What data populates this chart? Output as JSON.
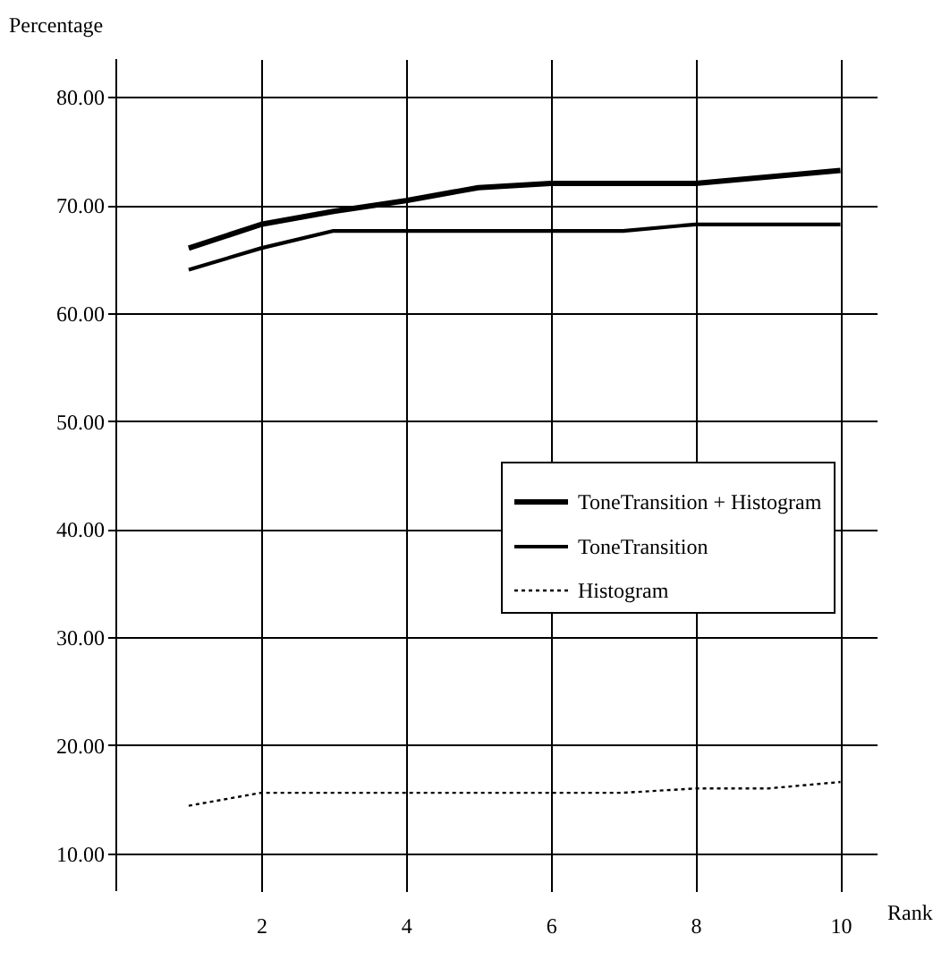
{
  "chart_data": {
    "type": "line",
    "xlabel": "Rank",
    "ylabel": "Percentage",
    "x": [
      1,
      2,
      3,
      4,
      5,
      6,
      7,
      8,
      9,
      10
    ],
    "series": [
      {
        "name": "ToneTransition + Histogram",
        "color": "#000000",
        "line_style": "solid",
        "values": [
          66.0,
          68.2,
          69.4,
          70.4,
          71.6,
          72.0,
          72.0,
          72.0,
          72.6,
          73.2
        ]
      },
      {
        "name": "ToneTransition",
        "color": "#000000",
        "line_style": "solid",
        "values": [
          64.0,
          66.0,
          67.6,
          67.6,
          67.6,
          67.6,
          67.6,
          68.2,
          68.2,
          68.2
        ]
      },
      {
        "name": "Histogram",
        "color": "#000000",
        "line_style": "dotted",
        "values": [
          14.4,
          15.6,
          15.6,
          15.6,
          15.6,
          15.6,
          15.6,
          16.0,
          16.0,
          16.6
        ]
      }
    ],
    "xlim": [
      0,
      10.5
    ],
    "xticks": [
      2,
      4,
      6,
      8,
      10
    ],
    "ylim": [
      6.5,
      83.5
    ],
    "yticks": [
      {
        "value": 10,
        "label": "10.00"
      },
      {
        "value": 20,
        "label": "20.00"
      },
      {
        "value": 30,
        "label": "30.00"
      },
      {
        "value": 40,
        "label": "40.00"
      },
      {
        "value": 50,
        "label": "50.00"
      },
      {
        "value": 60,
        "label": "60.00"
      },
      {
        "value": 70,
        "label": "70.00"
      },
      {
        "value": 80,
        "label": "80.00"
      }
    ],
    "grid": true,
    "legend": "right",
    "marker": "none"
  }
}
